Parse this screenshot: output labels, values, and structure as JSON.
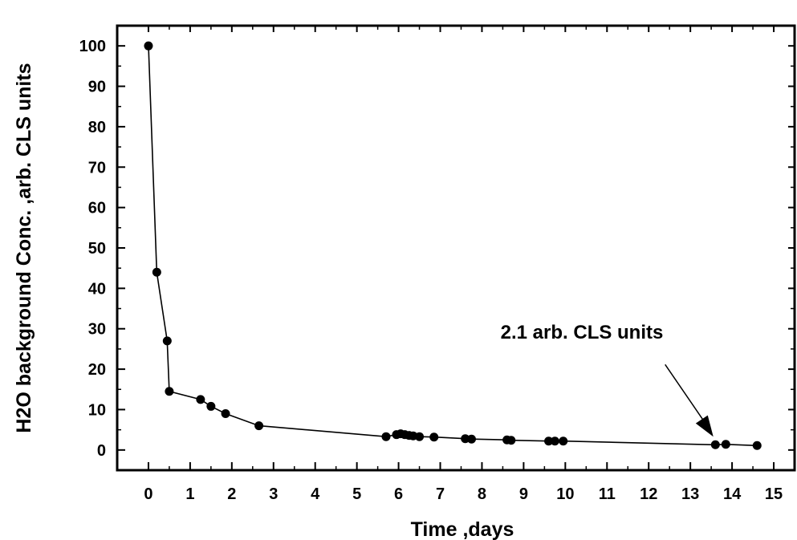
{
  "chart_data": {
    "type": "line",
    "title": "",
    "xlabel": "Time ,days",
    "ylabel": "H2O background Conc. ,arb. CLS units",
    "xlim": [
      -0.75,
      15.5
    ],
    "ylim": [
      -5,
      105
    ],
    "x_ticks": [
      0,
      1,
      2,
      3,
      4,
      5,
      6,
      7,
      8,
      9,
      10,
      11,
      12,
      13,
      14,
      15
    ],
    "x_tick_labels": [
      "0",
      "1",
      "2",
      "3",
      "4",
      "5",
      "6",
      "7",
      "8",
      "9",
      "10",
      "11",
      "12",
      "13",
      "14",
      "15"
    ],
    "y_ticks": [
      0,
      10,
      20,
      30,
      40,
      50,
      60,
      70,
      80,
      90,
      100
    ],
    "y_tick_labels": [
      "0",
      "10",
      "20",
      "30",
      "40",
      "50",
      "60",
      "70",
      "80",
      "90",
      "100"
    ],
    "grid": false,
    "series": [
      {
        "x": [
          0,
          0.2,
          0.45,
          0.5,
          1.25,
          1.5,
          1.85,
          2.65,
          5.7,
          5.95,
          6.05,
          6.15,
          6.25,
          6.35,
          6.5,
          6.85,
          7.6,
          7.75,
          8.6,
          8.7,
          9.6,
          9.75,
          9.95,
          13.6,
          13.85,
          14.6
        ],
        "y": [
          100,
          44,
          27,
          14.5,
          12.5,
          10.8,
          9,
          6,
          3.3,
          3.8,
          4,
          3.8,
          3.6,
          3.5,
          3.3,
          3.2,
          2.8,
          2.7,
          2.5,
          2.4,
          2.2,
          2.2,
          2.2,
          1.3,
          1.4,
          1.1
        ]
      }
    ],
    "annotations": [
      {
        "text": "2.1 arb. CLS units",
        "x": 13.55,
        "y": 1.3
      }
    ],
    "colors": {
      "line": "#000000",
      "marker": "#000000"
    }
  }
}
